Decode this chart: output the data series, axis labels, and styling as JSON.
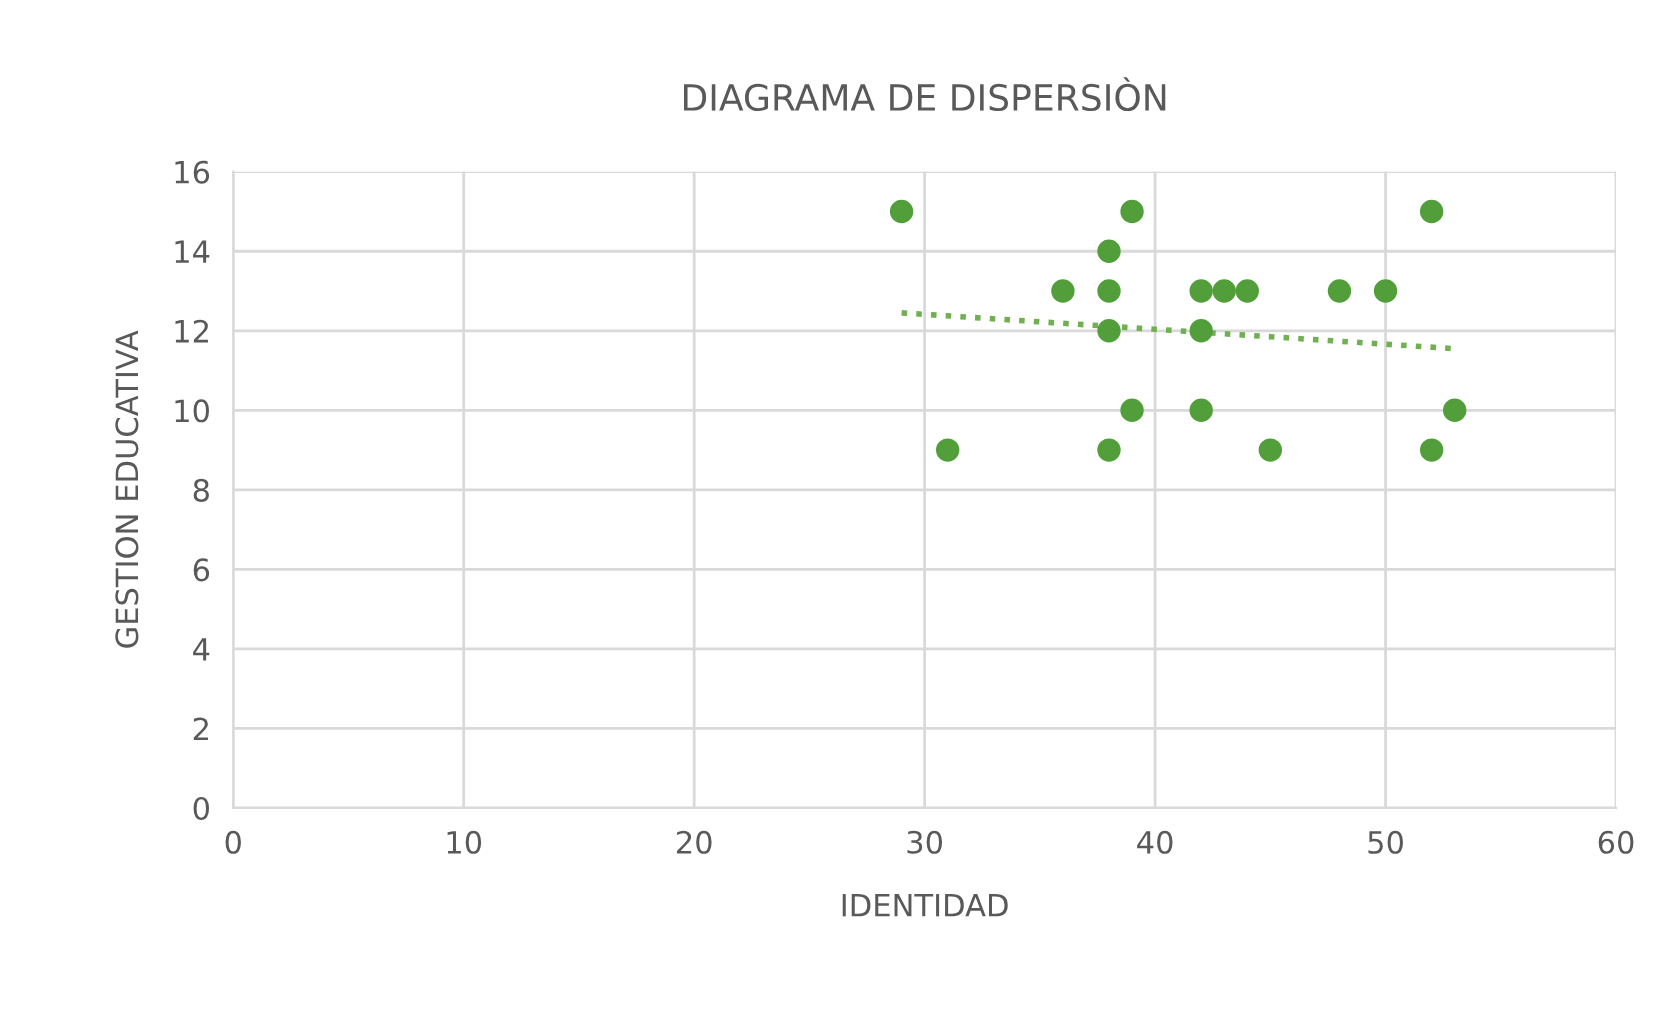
{
  "chart_data": {
    "type": "scatter",
    "title": "DIAGRAMA DE DISPERSIÒN",
    "xlabel": "IDENTIDAD",
    "ylabel": "GESTION EDUCATIVA",
    "xlim": [
      0,
      60
    ],
    "xticks": [
      0,
      10,
      20,
      30,
      40,
      50,
      60
    ],
    "ylim": [
      0,
      16
    ],
    "yticks": [
      0,
      2,
      4,
      6,
      8,
      10,
      12,
      14,
      16
    ],
    "grid": true,
    "legend": false,
    "marker": "circle",
    "series": [
      {
        "color": "#529e3a",
        "x": [
          29,
          31,
          36,
          38,
          38,
          38,
          38,
          39,
          39,
          42,
          42,
          42,
          43,
          44,
          45,
          48,
          50,
          52,
          52,
          53
        ],
        "values": [
          15,
          9,
          13,
          14,
          13,
          12,
          9,
          15,
          10,
          13,
          12,
          10,
          13,
          13,
          9,
          13,
          13,
          15,
          9,
          10
        ]
      },
      {
        "type": "line",
        "color": "#70b050",
        "marker": "none",
        "line_style": "dotted",
        "x": [
          29,
          53
        ],
        "values": [
          12.45,
          11.55
        ]
      }
    ]
  }
}
